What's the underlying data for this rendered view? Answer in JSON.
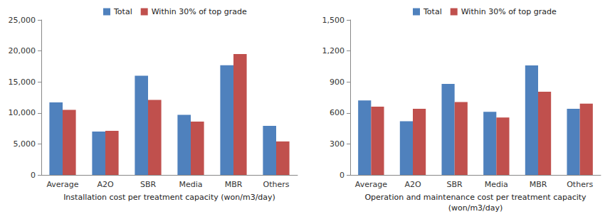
{
  "chart_data": [
    {
      "type": "bar",
      "xlabel": "Installation cost per treatment capacity (won/m3/day)",
      "categories": [
        "Average",
        "A2O",
        "SBR",
        "Media",
        "MBR",
        "Others"
      ],
      "series": [
        {
          "name": "Total",
          "color": "#4f81bd",
          "values": [
            11700,
            7000,
            16000,
            9700,
            17700,
            7900
          ]
        },
        {
          "name": "Within 30% of top grade",
          "color": "#c0504d",
          "values": [
            10500,
            7100,
            12100,
            8600,
            19500,
            5400
          ]
        }
      ],
      "ylim": [
        0,
        25000
      ],
      "yticks": [
        0,
        {
          "value": 5000,
          "label": "5,000"
        },
        {
          "value": 10000,
          "label": "10,000"
        },
        {
          "value": 15000,
          "label": "15,000"
        },
        {
          "value": 20000,
          "label": "20,000"
        },
        {
          "value": 25000,
          "label": "25,000"
        }
      ],
      "grid": false,
      "legend": "top"
    },
    {
      "type": "bar",
      "xlabel": "Operation and maintenance cost per treatment capacity\n(won/m3/day)",
      "categories": [
        "Average",
        "A2O",
        "SBR",
        "Media",
        "MBR",
        "Others"
      ],
      "series": [
        {
          "name": "Total",
          "color": "#4f81bd",
          "values": [
            720,
            520,
            880,
            610,
            1060,
            640
          ]
        },
        {
          "name": "Within 30% of top grade",
          "color": "#c0504d",
          "values": [
            660,
            640,
            705,
            555,
            805,
            690
          ]
        }
      ],
      "ylim": [
        0,
        1500
      ],
      "yticks": [
        0,
        300,
        600,
        900,
        {
          "value": 1200,
          "label": "1,200"
        },
        {
          "value": 1500,
          "label": "1,500"
        }
      ],
      "grid": false,
      "legend": "top"
    }
  ]
}
